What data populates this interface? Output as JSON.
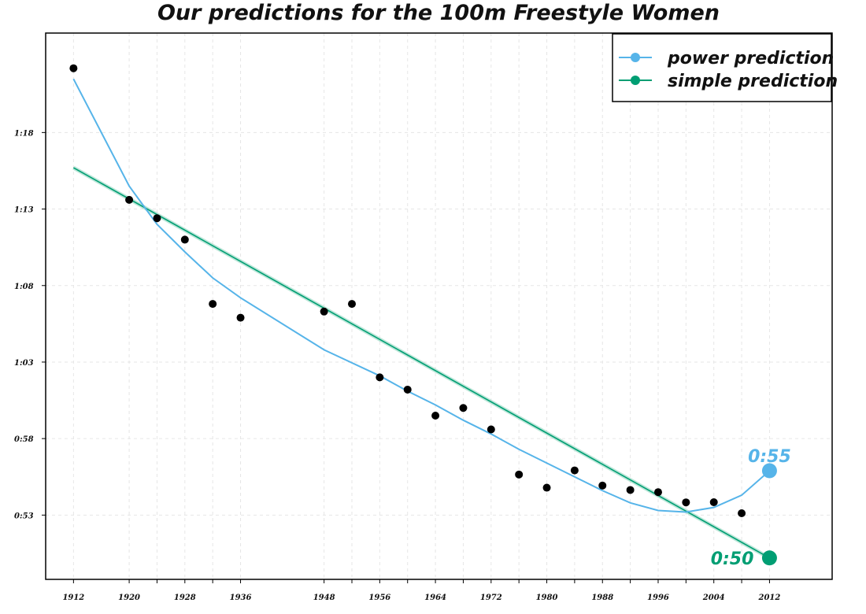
{
  "chart_data": {
    "type": "line",
    "title": "Our predictions for the 100m Freestyle Women",
    "xlabel": "",
    "ylabel": "",
    "xlim": [
      1908,
      2021
    ],
    "ylim": [
      48.8,
      84.5
    ],
    "x_ticks": [
      1912,
      1920,
      1928,
      1936,
      1948,
      1956,
      1964,
      1972,
      1980,
      1988,
      1996,
      2004,
      2012
    ],
    "x_tick_labels": [
      "1912",
      "1920",
      "1928",
      "1936",
      "1948",
      "1956",
      "1964",
      "1972",
      "1980",
      "1988",
      "1996",
      "2004",
      "2012"
    ],
    "x_minor_ticks": [
      1924,
      1932,
      1952,
      1960,
      1968,
      1976,
      1984,
      1992,
      2000,
      2008
    ],
    "y_ticks": [
      53,
      58,
      63,
      68,
      73,
      78
    ],
    "y_tick_labels": [
      "0:53",
      "0:58",
      "1:03",
      "1:08",
      "1:13",
      "1:18"
    ],
    "grid": true,
    "legend_position": "top-right",
    "results": {
      "x": [
        1912,
        1920,
        1924,
        1928,
        1932,
        1936,
        1948,
        1952,
        1956,
        1960,
        1964,
        1968,
        1972,
        1976,
        1980,
        1984,
        1988,
        1992,
        1996,
        2000,
        2004,
        2008
      ],
      "y": [
        82.2,
        73.6,
        72.4,
        71.0,
        66.8,
        65.9,
        66.3,
        66.8,
        62.0,
        61.2,
        59.5,
        60.0,
        58.6,
        55.65,
        54.79,
        55.92,
        54.93,
        54.64,
        54.5,
        53.83,
        53.84,
        53.12
      ]
    },
    "series": [
      {
        "name": "power prediction",
        "color": "#56b4e9",
        "x": [
          1912,
          1920,
          1924,
          1928,
          1932,
          1936,
          1948,
          1956,
          1960,
          1964,
          1968,
          1972,
          1976,
          1980,
          1984,
          1988,
          1992,
          1996,
          2000,
          2004,
          2008,
          2012
        ],
        "y": [
          81.5,
          74.5,
          72.0,
          70.2,
          68.5,
          67.2,
          63.8,
          62.1,
          61.1,
          60.2,
          59.2,
          58.3,
          57.3,
          56.4,
          55.5,
          54.6,
          53.8,
          53.3,
          53.2,
          53.5,
          54.3,
          55.9
        ]
      },
      {
        "name": "simple prediction",
        "color": "#009e73",
        "x": [
          1912,
          2012
        ],
        "y": [
          75.7,
          50.2
        ]
      }
    ],
    "annotations": [
      {
        "text": "0:55",
        "x": 2012,
        "y": 55.9,
        "color": "#56b4e9"
      },
      {
        "text": "0:50",
        "x": 2012,
        "y": 50.2,
        "color": "#009e73"
      }
    ]
  }
}
